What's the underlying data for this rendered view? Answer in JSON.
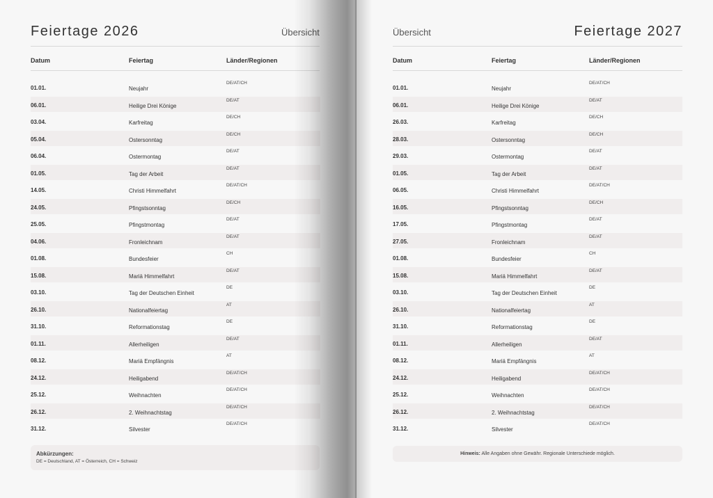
{
  "left": {
    "title": "Feiertage 2026",
    "subtitle": "Übersicht",
    "headers": [
      "Datum",
      "Feiertag",
      "Länder/Regionen"
    ],
    "rows": [
      [
        "01.01.",
        "Neujahr",
        "DE/AT/CH"
      ],
      [
        "06.01.",
        "Heilige Drei Könige",
        "DE/AT"
      ],
      [
        "03.04.",
        "Karfreitag",
        "DE/CH"
      ],
      [
        "05.04.",
        "Ostersonntag",
        "DE/CH"
      ],
      [
        "06.04.",
        "Ostermontag",
        "DE/AT"
      ],
      [
        "01.05.",
        "Tag der Arbeit",
        "DE/AT"
      ],
      [
        "14.05.",
        "Christi Himmelfahrt",
        "DE/AT/CH"
      ],
      [
        "24.05.",
        "Pfingstsonntag",
        "DE/CH"
      ],
      [
        "25.05.",
        "Pfingstmontag",
        "DE/AT"
      ],
      [
        "04.06.",
        "Fronleichnam",
        "DE/AT"
      ],
      [
        "01.08.",
        "Bundesfeier",
        "CH"
      ],
      [
        "15.08.",
        "Mariä Himmelfahrt",
        "DE/AT"
      ],
      [
        "03.10.",
        "Tag der Deutschen Einheit",
        "DE"
      ],
      [
        "26.10.",
        "Nationalfeiertag",
        "AT"
      ],
      [
        "31.10.",
        "Reformationstag",
        "DE"
      ],
      [
        "01.11.",
        "Allerheiligen",
        "DE/AT"
      ],
      [
        "08.12.",
        "Mariä Empfängnis",
        "AT"
      ],
      [
        "24.12.",
        "Heiligabend",
        "DE/AT/CH"
      ],
      [
        "25.12.",
        "Weihnachten",
        "DE/AT/CH"
      ],
      [
        "26.12.",
        "2. Weihnachtstag",
        "DE/AT/CH"
      ],
      [
        "31.12.",
        "Silvester",
        "DE/AT/CH"
      ]
    ],
    "note_title": "Abkürzungen:",
    "note_text": "DE = Deutschland, AT = Österreich, CH = Schweiz"
  },
  "right": {
    "title": "Feiertage 2027",
    "subtitle": "Übersicht",
    "headers": [
      "Datum",
      "Feiertag",
      "Länder/Regionen"
    ],
    "rows": [
      [
        "01.01.",
        "Neujahr",
        "DE/AT/CH"
      ],
      [
        "06.01.",
        "Heilige Drei Könige",
        "DE/AT"
      ],
      [
        "26.03.",
        "Karfreitag",
        "DE/CH"
      ],
      [
        "28.03.",
        "Ostersonntag",
        "DE/CH"
      ],
      [
        "29.03.",
        "Ostermontag",
        "DE/AT"
      ],
      [
        "01.05.",
        "Tag der Arbeit",
        "DE/AT"
      ],
      [
        "06.05.",
        "Christi Himmelfahrt",
        "DE/AT/CH"
      ],
      [
        "16.05.",
        "Pfingstsonntag",
        "DE/CH"
      ],
      [
        "17.05.",
        "Pfingstmontag",
        "DE/AT"
      ],
      [
        "27.05.",
        "Fronleichnam",
        "DE/AT"
      ],
      [
        "01.08.",
        "Bundesfeier",
        "CH"
      ],
      [
        "15.08.",
        "Mariä Himmelfahrt",
        "DE/AT"
      ],
      [
        "03.10.",
        "Tag der Deutschen Einheit",
        "DE"
      ],
      [
        "26.10.",
        "Nationalfeiertag",
        "AT"
      ],
      [
        "31.10.",
        "Reformationstag",
        "DE"
      ],
      [
        "01.11.",
        "Allerheiligen",
        "DE/AT"
      ],
      [
        "08.12.",
        "Mariä Empfängnis",
        "AT"
      ],
      [
        "24.12.",
        "Heiligabend",
        "DE/AT/CH"
      ],
      [
        "25.12.",
        "Weihnachten",
        "DE/AT/CH"
      ],
      [
        "26.12.",
        "2. Weihnachtstag",
        "DE/AT/CH"
      ],
      [
        "31.12.",
        "Silvester",
        "DE/AT/CH"
      ]
    ],
    "note_label": "Hinweis:",
    "note_text": "Alle Angaben ohne Gewähr. Regionale Unterschiede möglich."
  }
}
